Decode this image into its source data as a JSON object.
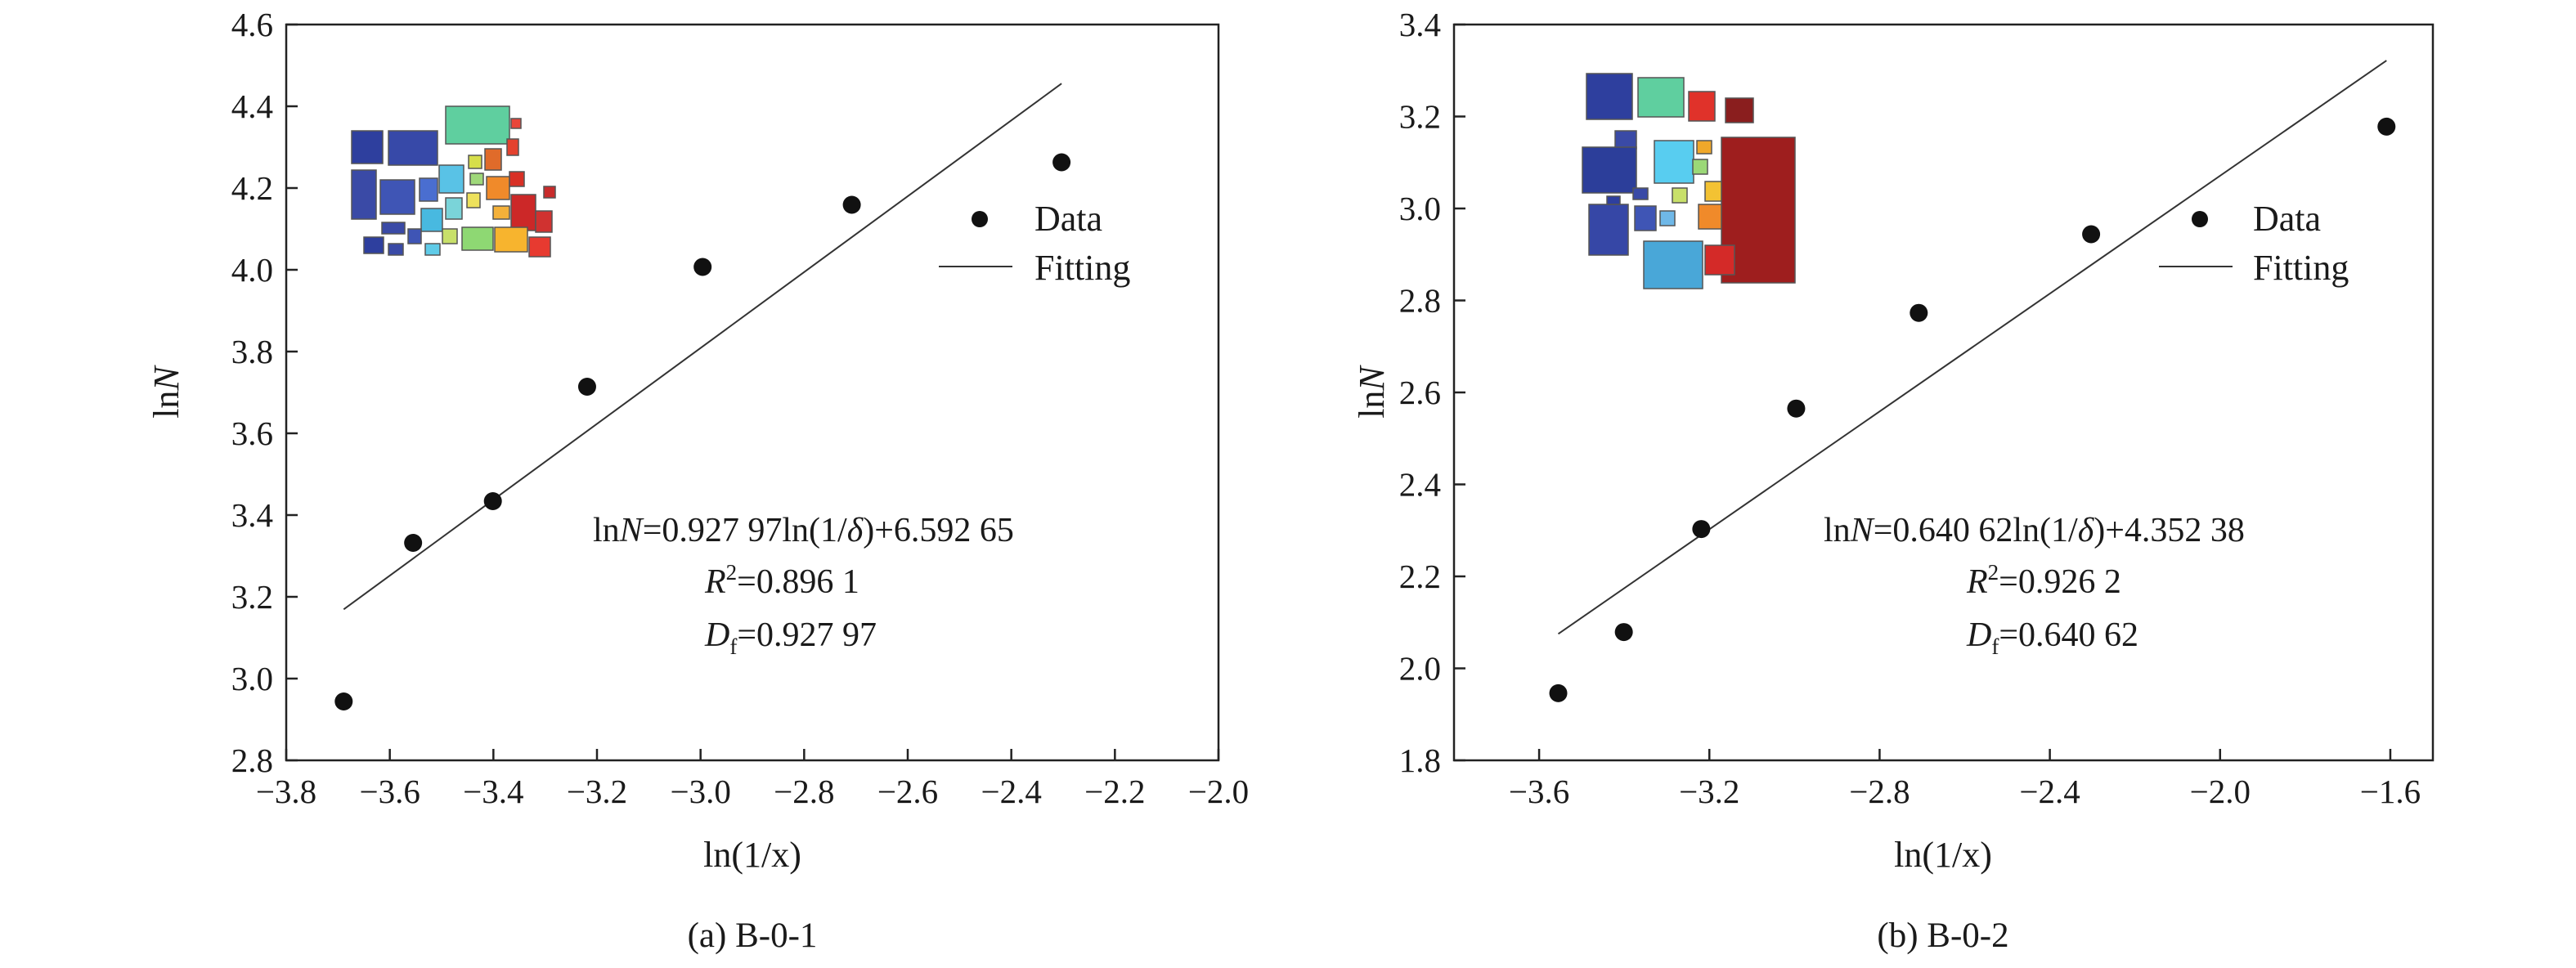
{
  "chart_data": [
    {
      "type": "scatter",
      "caption": "(a) B-0-1",
      "xlabel": "ln(1/x)",
      "ylabel": "lnN",
      "xlim": [
        -3.8,
        -2.0
      ],
      "ylim": [
        2.8,
        4.6
      ],
      "x_ticks": [
        -3.8,
        -3.6,
        -3.4,
        -3.2,
        -3.0,
        -2.8,
        -2.6,
        -2.4,
        -2.2,
        -2.0
      ],
      "x_tick_labels": [
        "−3.8",
        "−3.6",
        "−3.4",
        "−3.2",
        "−3.0",
        "−2.8",
        "−2.6",
        "−2.4",
        "−2.2",
        "−2.0"
      ],
      "y_ticks": [
        2.8,
        3.0,
        3.2,
        3.4,
        3.6,
        3.8,
        4.0,
        4.2,
        4.4,
        4.6
      ],
      "y_tick_labels": [
        "2.8",
        "3.0",
        "3.2",
        "3.4",
        "3.6",
        "3.8",
        "4.0",
        "4.2",
        "4.4",
        "4.6"
      ],
      "legend": {
        "placement": "right",
        "data_label": "Data",
        "fit_label": "Fitting"
      },
      "series": [
        {
          "name": "Data",
          "kind": "points",
          "x": [
            -3.689,
            -3.555,
            -3.401,
            -3.219,
            -2.996,
            -2.708,
            -2.303
          ],
          "y": [
            2.944,
            3.332,
            3.434,
            3.714,
            4.007,
            4.159,
            4.263
          ]
        },
        {
          "name": "Fitting",
          "kind": "line",
          "slope": 0.92797,
          "intercept": 6.59265,
          "x_range": [
            -3.689,
            -2.303
          ]
        }
      ],
      "equation": {
        "prefix": "ln",
        "var": "N",
        "body": "=0.927 97ln(1/",
        "delta": "δ",
        "tail": ")+6.592 65"
      },
      "r2": {
        "label": "R",
        "sup": "2",
        "value": "=0.896 1"
      },
      "df": {
        "label": "D",
        "sub": "f",
        "value": "=0.927 97"
      }
    },
    {
      "type": "scatter",
      "caption": "(b) B-0-2",
      "xlabel": "ln(1/x)",
      "ylabel": "lnN",
      "xlim": [
        -3.8,
        -1.5
      ],
      "ylim": [
        1.8,
        3.4
      ],
      "x_ticks": [
        -3.6,
        -3.2,
        -2.8,
        -2.4,
        -2.0,
        -1.6
      ],
      "x_tick_labels": [
        "−3.6",
        "−3.2",
        "−2.8",
        "−2.4",
        "−2.0",
        "−1.6"
      ],
      "y_ticks": [
        1.8,
        2.0,
        2.2,
        2.4,
        2.6,
        2.8,
        3.0,
        3.2,
        3.4
      ],
      "y_tick_labels": [
        "1.8",
        "2.0",
        "2.2",
        "2.4",
        "2.6",
        "2.8",
        "3.0",
        "3.2",
        "3.4"
      ],
      "legend": {
        "placement": "right",
        "data_label": "Data",
        "fit_label": "Fitting"
      },
      "series": [
        {
          "name": "Data",
          "kind": "points",
          "x": [
            -3.555,
            -3.401,
            -3.219,
            -2.996,
            -2.708,
            -2.303,
            -1.609
          ],
          "y": [
            1.946,
            2.079,
            2.303,
            2.565,
            2.773,
            2.944,
            3.178
          ]
        },
        {
          "name": "Fitting",
          "kind": "line",
          "slope": 0.64062,
          "intercept": 4.35238,
          "x_range": [
            -3.555,
            -1.609
          ]
        }
      ],
      "equation": {
        "prefix": "ln",
        "var": "N",
        "body": "=0.640 62ln(1/",
        "delta": "δ",
        "tail": ")+4.352 38"
      },
      "r2": {
        "label": "R",
        "sup": "2",
        "value": "=0.926 2"
      },
      "df": {
        "label": "D",
        "sub": "f",
        "value": "=0.640 62"
      }
    }
  ]
}
